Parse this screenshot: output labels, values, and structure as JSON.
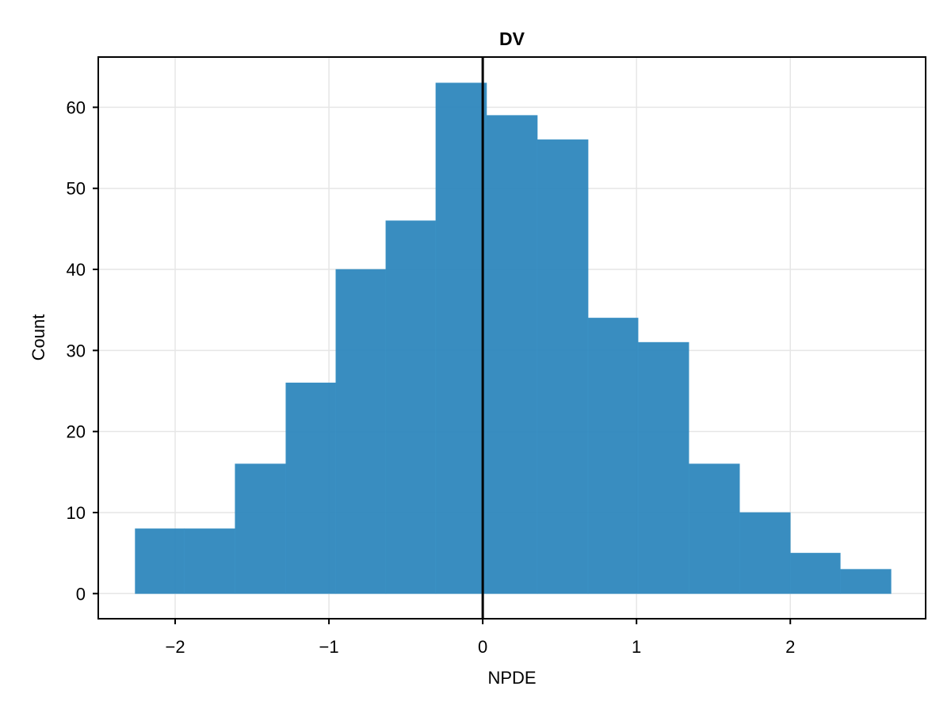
{
  "chart_data": {
    "type": "bar",
    "title": "DV",
    "xlabel": "NPDE",
    "ylabel": "Count",
    "bin_edges": [
      -2.26,
      -1.94,
      -1.61,
      -1.28,
      -0.955,
      -0.63,
      -0.305,
      0.025,
      0.355,
      0.685,
      1.01,
      1.34,
      1.67,
      2.0,
      2.325,
      2.655
    ],
    "values": [
      8,
      8,
      16,
      26,
      40,
      46,
      63,
      59,
      56,
      34,
      31,
      16,
      10,
      5,
      3
    ],
    "xlim": [
      -2.5,
      2.88
    ],
    "ylim": [
      -3.1,
      66.2
    ],
    "xticks": [
      -2,
      -1,
      0,
      1,
      2
    ],
    "xtick_labels": [
      "−2",
      "−1",
      "0",
      "1",
      "2"
    ],
    "yticks": [
      0,
      10,
      20,
      30,
      40,
      50,
      60
    ],
    "ytick_labels": [
      "0",
      "10",
      "20",
      "30",
      "40",
      "50",
      "60"
    ],
    "vline_x": 0,
    "grid": true,
    "colors": {
      "bar": "#2a84bb",
      "vline": "#000000",
      "grid": "#e6e6e6",
      "frame": "#000000"
    }
  }
}
